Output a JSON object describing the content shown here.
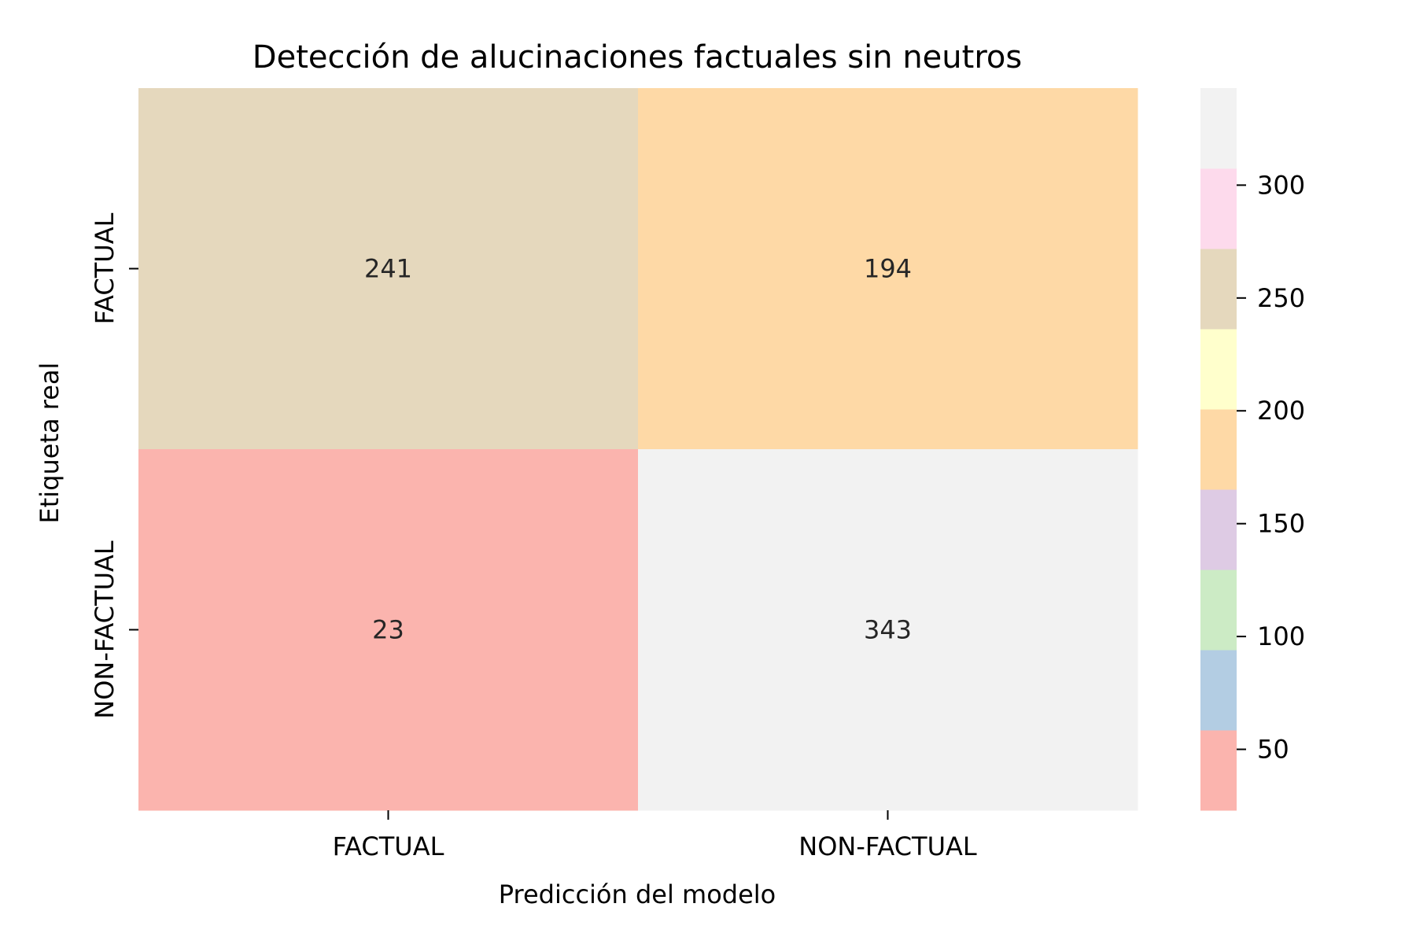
{
  "chart_data": {
    "type": "heatmap",
    "title": "Detección de alucinaciones factuales sin neutros",
    "xlabel": "Predicción del modelo",
    "ylabel": "Etiqueta real",
    "x_categories": [
      "FACTUAL",
      "NON-FACTUAL"
    ],
    "y_categories": [
      "FACTUAL",
      "NON-FACTUAL"
    ],
    "values": [
      [
        241,
        194
      ],
      [
        23,
        343
      ]
    ],
    "colorbar": {
      "range": [
        23,
        343
      ],
      "ticks": [
        "50",
        "100",
        "150",
        "200",
        "250",
        "300"
      ],
      "tick_values": [
        50,
        100,
        150,
        200,
        250,
        300
      ],
      "colors": [
        "#fbb4ae",
        "#b3cde3",
        "#ccebc5",
        "#decbe4",
        "#fed9a6",
        "#ffffcc",
        "#e5d8bd",
        "#fddaec",
        "#f2f2f2"
      ]
    },
    "grid": false,
    "legend": "colorbar-right"
  }
}
